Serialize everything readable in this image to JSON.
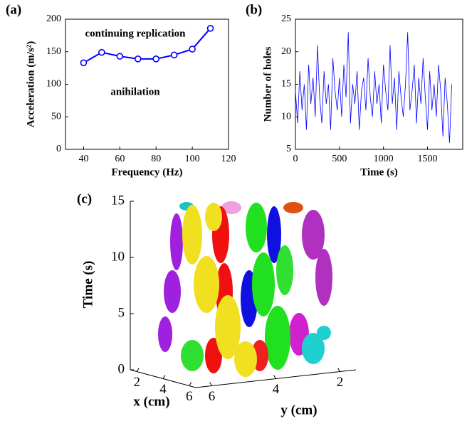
{
  "chart_data": [
    {
      "type": "line",
      "panel_label": "(a)",
      "xlabel": "Frequency (Hz)",
      "ylabel": "Acceleration (m/s²)",
      "annotations": [
        "continuing replication",
        "anihilation"
      ],
      "x": [
        40,
        50,
        60,
        70,
        80,
        90,
        100,
        110
      ],
      "series": [
        {
          "color": "#0000ff",
          "values": [
            133,
            149,
            143,
            139,
            139,
            145,
            154,
            186
          ]
        }
      ],
      "marker": "circle",
      "xlim": [
        30,
        120
      ],
      "xticks": [
        40,
        60,
        80,
        100,
        120
      ],
      "ylim": [
        0,
        200
      ],
      "yticks": [
        0,
        50,
        100,
        150,
        200
      ]
    },
    {
      "type": "line",
      "panel_label": "(b)",
      "xlabel": "Time (s)",
      "ylabel": "Number of holes",
      "x": [
        0,
        25,
        50,
        75,
        100,
        125,
        150,
        175,
        200,
        225,
        250,
        275,
        300,
        325,
        350,
        375,
        400,
        425,
        450,
        475,
        500,
        525,
        550,
        575,
        600,
        625,
        650,
        675,
        700,
        725,
        750,
        775,
        800,
        825,
        850,
        875,
        900,
        925,
        950,
        975,
        1000,
        1025,
        1050,
        1075,
        1100,
        1125,
        1150,
        1175,
        1200,
        1225,
        1250,
        1275,
        1300,
        1325,
        1350,
        1375,
        1400,
        1425,
        1450,
        1475,
        1500,
        1525,
        1550,
        1575,
        1600,
        1625,
        1650,
        1675,
        1700,
        1725,
        1750,
        1775
      ],
      "series": [
        {
          "color": "#0000ff",
          "values": [
            14,
            9,
            17,
            11,
            15,
            8,
            18,
            12,
            16,
            10,
            21,
            13,
            9,
            17,
            12,
            15,
            8,
            19,
            14,
            11,
            16,
            10,
            18,
            13,
            23,
            9,
            15,
            12,
            17,
            8,
            14,
            16,
            11,
            19,
            13,
            10,
            17,
            12,
            15,
            9,
            18,
            14,
            11,
            21,
            12,
            16,
            8,
            17,
            13,
            10,
            15,
            23,
            11,
            14,
            18,
            9,
            16,
            12,
            19,
            13,
            8,
            17,
            11,
            15,
            10,
            18,
            14,
            7,
            16,
            12,
            6,
            15
          ]
        }
      ],
      "xlim": [
        0,
        1900
      ],
      "xticks": [
        0,
        500,
        1000,
        1500
      ],
      "ylim": [
        5,
        25
      ],
      "yticks": [
        5,
        10,
        15,
        20,
        25
      ]
    },
    {
      "type": "isosurface3d",
      "panel_label": "(c)",
      "xlabel": "x (cm)",
      "ylabel": "y (cm)",
      "zlabel": "Time (s)",
      "xlim": [
        1.5,
        6.5
      ],
      "xticks": [
        2,
        4,
        6
      ],
      "ylim": [
        1.5,
        6.5
      ],
      "yticks": [
        6,
        4,
        2
      ],
      "zlim": [
        0,
        15
      ],
      "zticks": [
        0,
        5,
        10,
        15
      ]
    }
  ]
}
